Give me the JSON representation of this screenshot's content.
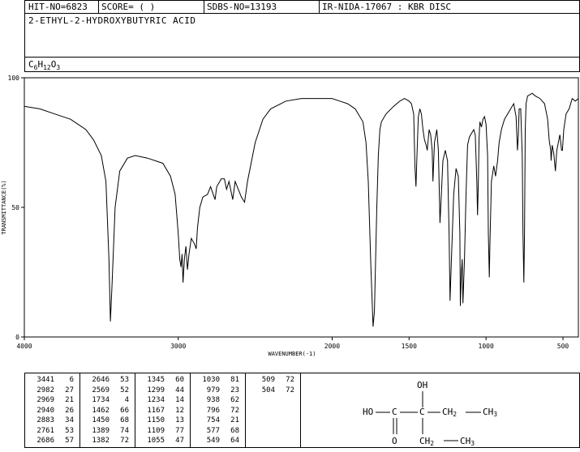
{
  "header": {
    "hit_no": "HIT-NO=6823",
    "score": "SCORE=  (   )",
    "sdbs_no": "SDBS-NO=13193",
    "ir_nida": "IR-NIDA-17067 : KBR DISC"
  },
  "compound": {
    "name": "2-ETHYL-2-HYDROXYBUTYRIC ACID",
    "formula_parts": [
      "C",
      "6",
      "H",
      "12",
      "O",
      "3"
    ]
  },
  "chart_data": {
    "type": "line",
    "xlabel": "WAVENUMBER(-1)",
    "ylabel": "TRANSMITTANCE(%)",
    "xlim": [
      4000,
      400
    ],
    "ylim": [
      0,
      100
    ],
    "x_ticks": [
      "4000",
      "3000",
      "2000",
      "1500",
      "1000",
      "500"
    ],
    "x_tick_values": [
      4000,
      3000,
      2000,
      1500,
      1000,
      500
    ],
    "y_ticks": [
      "0",
      "50",
      "100"
    ],
    "y_tick_values": [
      0,
      50,
      100
    ],
    "series": [
      {
        "points": [
          [
            4000,
            89
          ],
          [
            3900,
            88
          ],
          [
            3800,
            86
          ],
          [
            3700,
            84
          ],
          [
            3650,
            82
          ],
          [
            3600,
            80
          ],
          [
            3550,
            76
          ],
          [
            3500,
            70
          ],
          [
            3470,
            60
          ],
          [
            3450,
            30
          ],
          [
            3441,
            6
          ],
          [
            3430,
            20
          ],
          [
            3410,
            50
          ],
          [
            3380,
            64
          ],
          [
            3330,
            69
          ],
          [
            3280,
            70
          ],
          [
            3200,
            69
          ],
          [
            3100,
            67
          ],
          [
            3050,
            62
          ],
          [
            3020,
            55
          ],
          [
            3000,
            40
          ],
          [
            2990,
            30
          ],
          [
            2982,
            27
          ],
          [
            2975,
            32
          ],
          [
            2969,
            21
          ],
          [
            2960,
            30
          ],
          [
            2950,
            35
          ],
          [
            2940,
            26
          ],
          [
            2930,
            32
          ],
          [
            2915,
            38
          ],
          [
            2895,
            36
          ],
          [
            2883,
            34
          ],
          [
            2875,
            42
          ],
          [
            2860,
            50
          ],
          [
            2840,
            54
          ],
          [
            2810,
            55
          ],
          [
            2790,
            58
          ],
          [
            2761,
            53
          ],
          [
            2750,
            58
          ],
          [
            2720,
            61
          ],
          [
            2700,
            61
          ],
          [
            2686,
            57
          ],
          [
            2670,
            60
          ],
          [
            2646,
            53
          ],
          [
            2630,
            60
          ],
          [
            2590,
            54
          ],
          [
            2569,
            52
          ],
          [
            2550,
            60
          ],
          [
            2500,
            75
          ],
          [
            2450,
            84
          ],
          [
            2400,
            88
          ],
          [
            2300,
            91
          ],
          [
            2200,
            92
          ],
          [
            2100,
            92
          ],
          [
            2000,
            92
          ],
          [
            1950,
            91
          ],
          [
            1900,
            90
          ],
          [
            1850,
            88
          ],
          [
            1800,
            83
          ],
          [
            1780,
            75
          ],
          [
            1765,
            60
          ],
          [
            1750,
            30
          ],
          [
            1734,
            4
          ],
          [
            1725,
            10
          ],
          [
            1710,
            50
          ],
          [
            1700,
            70
          ],
          [
            1690,
            80
          ],
          [
            1680,
            83
          ],
          [
            1650,
            86
          ],
          [
            1600,
            89
          ],
          [
            1560,
            91
          ],
          [
            1530,
            92
          ],
          [
            1500,
            91
          ],
          [
            1485,
            90
          ],
          [
            1470,
            86
          ],
          [
            1462,
            66
          ],
          [
            1455,
            58
          ],
          [
            1450,
            68
          ],
          [
            1440,
            85
          ],
          [
            1430,
            88
          ],
          [
            1420,
            86
          ],
          [
            1410,
            80
          ],
          [
            1400,
            76
          ],
          [
            1389,
            74
          ],
          [
            1382,
            72
          ],
          [
            1370,
            80
          ],
          [
            1360,
            78
          ],
          [
            1350,
            72
          ],
          [
            1345,
            60
          ],
          [
            1335,
            75
          ],
          [
            1320,
            80
          ],
          [
            1310,
            72
          ],
          [
            1299,
            44
          ],
          [
            1290,
            55
          ],
          [
            1280,
            68
          ],
          [
            1265,
            72
          ],
          [
            1250,
            68
          ],
          [
            1240,
            40
          ],
          [
            1234,
            14
          ],
          [
            1225,
            30
          ],
          [
            1210,
            55
          ],
          [
            1195,
            65
          ],
          [
            1180,
            62
          ],
          [
            1170,
            40
          ],
          [
            1167,
            12
          ],
          [
            1160,
            25
          ],
          [
            1155,
            30
          ],
          [
            1150,
            13
          ],
          [
            1140,
            30
          ],
          [
            1130,
            55
          ],
          [
            1120,
            74
          ],
          [
            1109,
            77
          ],
          [
            1100,
            78
          ],
          [
            1090,
            79
          ],
          [
            1080,
            80
          ],
          [
            1070,
            78
          ],
          [
            1060,
            60
          ],
          [
            1055,
            47
          ],
          [
            1050,
            60
          ],
          [
            1045,
            77
          ],
          [
            1040,
            83
          ],
          [
            1030,
            81
          ],
          [
            1020,
            84
          ],
          [
            1010,
            85
          ],
          [
            1000,
            82
          ],
          [
            990,
            70
          ],
          [
            985,
            40
          ],
          [
            979,
            23
          ],
          [
            975,
            35
          ],
          [
            965,
            60
          ],
          [
            950,
            66
          ],
          [
            938,
            62
          ],
          [
            925,
            68
          ],
          [
            915,
            75
          ],
          [
            900,
            80
          ],
          [
            880,
            84
          ],
          [
            850,
            87
          ],
          [
            820,
            90
          ],
          [
            805,
            85
          ],
          [
            796,
            72
          ],
          [
            790,
            78
          ],
          [
            785,
            88
          ],
          [
            775,
            88
          ],
          [
            765,
            70
          ],
          [
            760,
            40
          ],
          [
            754,
            21
          ],
          [
            750,
            40
          ],
          [
            745,
            80
          ],
          [
            740,
            90
          ],
          [
            730,
            93
          ],
          [
            700,
            94
          ],
          [
            680,
            93
          ],
          [
            650,
            92
          ],
          [
            620,
            90
          ],
          [
            600,
            84
          ],
          [
            590,
            76
          ],
          [
            580,
            72
          ],
          [
            577,
            68
          ],
          [
            570,
            74
          ],
          [
            560,
            71
          ],
          [
            549,
            64
          ],
          [
            540,
            72
          ],
          [
            520,
            78
          ],
          [
            509,
            72
          ],
          [
            504,
            72
          ],
          [
            495,
            80
          ],
          [
            480,
            86
          ],
          [
            460,
            88
          ],
          [
            440,
            92
          ],
          [
            420,
            91
          ],
          [
            400,
            92
          ]
        ]
      }
    ],
    "grid": false
  },
  "peak_table": {
    "columns": [
      [
        [
          "3441",
          "6"
        ],
        [
          "2982",
          "27"
        ],
        [
          "2969",
          "21"
        ],
        [
          "2940",
          "26"
        ],
        [
          "2883",
          "34"
        ],
        [
          "2761",
          "53"
        ],
        [
          "2686",
          "57"
        ]
      ],
      [
        [
          "2646",
          "53"
        ],
        [
          "2569",
          "52"
        ],
        [
          "1734",
          "4"
        ],
        [
          "1462",
          "66"
        ],
        [
          "1450",
          "68"
        ],
        [
          "1389",
          "74"
        ],
        [
          "1382",
          "72"
        ]
      ],
      [
        [
          "1345",
          "60"
        ],
        [
          "1299",
          "44"
        ],
        [
          "1234",
          "14"
        ],
        [
          "1167",
          "12"
        ],
        [
          "1150",
          "13"
        ],
        [
          "1109",
          "77"
        ],
        [
          "1055",
          "47"
        ]
      ],
      [
        [
          "1030",
          "81"
        ],
        [
          "979",
          "23"
        ],
        [
          "938",
          "62"
        ],
        [
          "796",
          "72"
        ],
        [
          "754",
          "21"
        ],
        [
          "577",
          "68"
        ],
        [
          "549",
          "64"
        ]
      ],
      [
        [
          "509",
          "72"
        ],
        [
          "504",
          "72"
        ]
      ]
    ]
  },
  "structure": {
    "oh_top": "OH",
    "ho": "HO",
    "c1": "C",
    "c2": "C",
    "ch2_a": "CH",
    "sub2_a": "2",
    "ch3_a": "CH",
    "sub3_a": "3",
    "o": "O",
    "ch2_b": "CH",
    "sub2_b": "2",
    "ch3_b": "CH",
    "sub3_b": "3"
  }
}
